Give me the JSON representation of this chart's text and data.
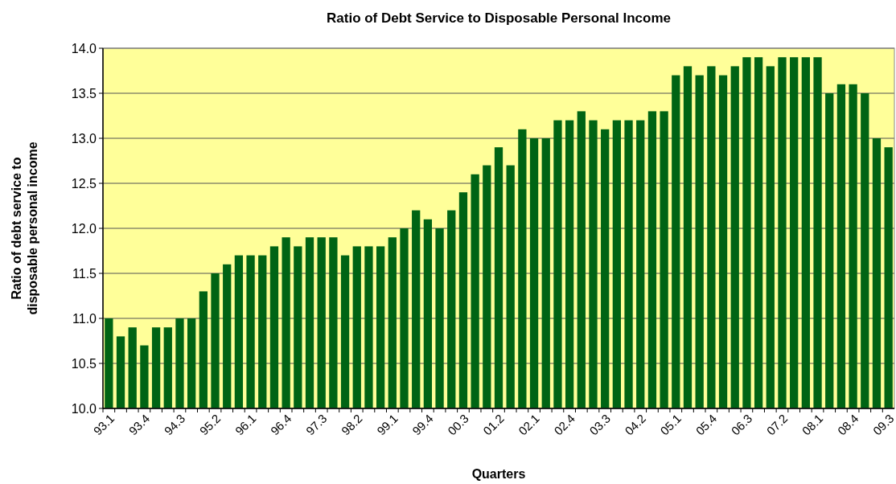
{
  "chart_data": {
    "type": "bar",
    "title": "Ratio of Debt Service to Disposable Personal Income",
    "xlabel": "Quarters",
    "ylabel": "Ratio of debt service to disposable personal income",
    "categories": [
      "93.1",
      null,
      null,
      "93.4",
      null,
      null,
      "94.3",
      null,
      null,
      "95.2",
      null,
      null,
      "96.1",
      null,
      null,
      "96.4",
      null,
      null,
      "97.3",
      null,
      null,
      "98.2",
      null,
      null,
      "99.1",
      null,
      null,
      "99.4",
      null,
      null,
      "00.3",
      null,
      null,
      "01.2",
      null,
      null,
      "02.1",
      null,
      null,
      "02.4",
      null,
      null,
      "03.3",
      null,
      null,
      "04.2",
      null,
      null,
      "05.1",
      null,
      null,
      "05.4",
      null,
      null,
      "06.3",
      null,
      null,
      "07.2",
      null,
      null,
      "08.1",
      null,
      null,
      "08.4",
      null,
      null,
      "09.3"
    ],
    "values": [
      11.0,
      10.8,
      10.9,
      10.7,
      10.9,
      10.9,
      11.0,
      11.0,
      11.3,
      11.5,
      11.6,
      11.7,
      11.7,
      11.7,
      11.8,
      11.9,
      11.8,
      11.9,
      11.9,
      11.9,
      11.7,
      11.8,
      11.8,
      11.8,
      11.9,
      12.0,
      12.2,
      12.1,
      12.0,
      12.2,
      12.4,
      12.6,
      12.7,
      12.9,
      12.7,
      13.1,
      13.0,
      13.0,
      13.2,
      13.2,
      13.3,
      13.2,
      13.1,
      13.2,
      13.2,
      13.2,
      13.3,
      13.3,
      13.7,
      13.8,
      13.7,
      13.8,
      13.7,
      13.8,
      13.9,
      13.9,
      13.8,
      13.9,
      13.9,
      13.9,
      13.9,
      13.5,
      13.6,
      13.6,
      13.5,
      13.0,
      12.9
    ],
    "color": "#006414",
    "ylim": [
      10,
      14
    ],
    "yticks": [
      {
        "value": 10,
        "label": "10.0"
      },
      {
        "value": 10.5,
        "label": "10.5"
      },
      {
        "value": 11,
        "label": "11.0"
      },
      {
        "value": 11.5,
        "label": "11.5"
      },
      {
        "value": 12,
        "label": "12.0"
      },
      {
        "value": 12.5,
        "label": "12.5"
      },
      {
        "value": 13,
        "label": "13.0"
      },
      {
        "value": 13.5,
        "label": "13.5"
      },
      {
        "value": 14,
        "label": "14.0"
      }
    ],
    "grid": "y"
  }
}
